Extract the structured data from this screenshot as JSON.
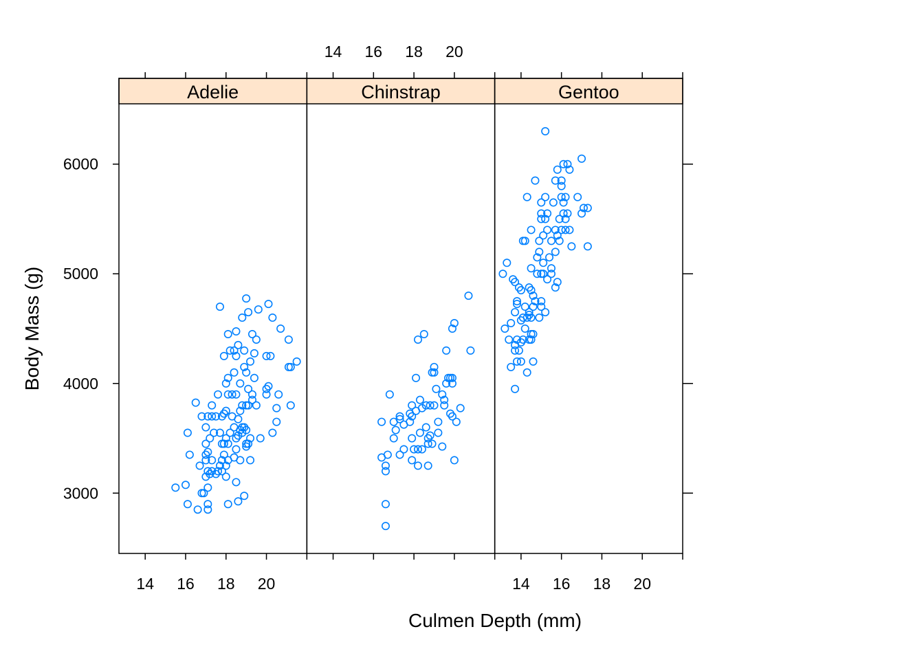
{
  "chart_data": {
    "type": "scatter",
    "xlabel": "Culmen Depth (mm)",
    "ylabel": "Body Mass (g)",
    "xlim": [
      12.7,
      22.0
    ],
    "ylim": [
      2450,
      6550
    ],
    "x_ticks": [
      14,
      16,
      18,
      20
    ],
    "y_ticks": [
      3000,
      4000,
      5000,
      6000
    ],
    "point_color": "#0080ff",
    "strip_color": "#ffe5cc",
    "panels": [
      {
        "name": "Adelie",
        "points": [
          [
            15.5,
            3050
          ],
          [
            16.0,
            3075
          ],
          [
            16.1,
            2900
          ],
          [
            16.1,
            3550
          ],
          [
            16.2,
            3350
          ],
          [
            16.5,
            3825
          ],
          [
            16.6,
            2850
          ],
          [
            16.7,
            3250
          ],
          [
            16.8,
            3000
          ],
          [
            16.8,
            3700
          ],
          [
            16.9,
            3000
          ],
          [
            17.0,
            3150
          ],
          [
            17.0,
            3300
          ],
          [
            17.0,
            3350
          ],
          [
            17.0,
            3450
          ],
          [
            17.0,
            3600
          ],
          [
            17.1,
            2850
          ],
          [
            17.1,
            2900
          ],
          [
            17.1,
            3050
          ],
          [
            17.1,
            3200
          ],
          [
            17.1,
            3375
          ],
          [
            17.1,
            3700
          ],
          [
            17.2,
            3175
          ],
          [
            17.2,
            3500
          ],
          [
            17.3,
            3200
          ],
          [
            17.3,
            3300
          ],
          [
            17.3,
            3700
          ],
          [
            17.3,
            3800
          ],
          [
            17.4,
            3550
          ],
          [
            17.5,
            3175
          ],
          [
            17.5,
            3700
          ],
          [
            17.6,
            3200
          ],
          [
            17.6,
            3900
          ],
          [
            17.7,
            3250
          ],
          [
            17.7,
            3550
          ],
          [
            17.7,
            4700
          ],
          [
            17.8,
            3300
          ],
          [
            17.8,
            3450
          ],
          [
            17.8,
            3700
          ],
          [
            17.8,
            3200
          ],
          [
            17.9,
            3350
          ],
          [
            17.9,
            3450
          ],
          [
            17.9,
            3725
          ],
          [
            17.9,
            4250
          ],
          [
            18.0,
            3150
          ],
          [
            18.0,
            3250
          ],
          [
            18.0,
            3500
          ],
          [
            18.0,
            3750
          ],
          [
            18.0,
            4000
          ],
          [
            18.1,
            2900
          ],
          [
            18.1,
            3300
          ],
          [
            18.1,
            3450
          ],
          [
            18.1,
            3900
          ],
          [
            18.1,
            4050
          ],
          [
            18.1,
            4450
          ],
          [
            18.2,
            3550
          ],
          [
            18.2,
            4300
          ],
          [
            18.3,
            3700
          ],
          [
            18.3,
            3900
          ],
          [
            18.4,
            3325
          ],
          [
            18.4,
            3600
          ],
          [
            18.4,
            4100
          ],
          [
            18.4,
            4300
          ],
          [
            18.5,
            3100
          ],
          [
            18.5,
            3400
          ],
          [
            18.5,
            3500
          ],
          [
            18.5,
            3900
          ],
          [
            18.5,
            4250
          ],
          [
            18.5,
            4475
          ],
          [
            18.6,
            2925
          ],
          [
            18.6,
            3525
          ],
          [
            18.6,
            3675
          ],
          [
            18.6,
            4350
          ],
          [
            18.7,
            3300
          ],
          [
            18.7,
            3575
          ],
          [
            18.7,
            3750
          ],
          [
            18.7,
            4000
          ],
          [
            18.8,
            3550
          ],
          [
            18.8,
            3600
          ],
          [
            18.8,
            3800
          ],
          [
            18.8,
            4600
          ],
          [
            18.9,
            2975
          ],
          [
            18.9,
            3600
          ],
          [
            18.9,
            4150
          ],
          [
            18.9,
            4300
          ],
          [
            19.0,
            3425
          ],
          [
            19.0,
            3450
          ],
          [
            19.0,
            3575
          ],
          [
            19.0,
            3800
          ],
          [
            19.0,
            4100
          ],
          [
            19.0,
            4775
          ],
          [
            19.1,
            3450
          ],
          [
            19.1,
            3800
          ],
          [
            19.1,
            3950
          ],
          [
            19.1,
            4650
          ],
          [
            19.2,
            3300
          ],
          [
            19.2,
            3500
          ],
          [
            19.2,
            4200
          ],
          [
            19.3,
            3850
          ],
          [
            19.3,
            3900
          ],
          [
            19.3,
            4450
          ],
          [
            19.4,
            4050
          ],
          [
            19.4,
            4275
          ],
          [
            19.5,
            3800
          ],
          [
            19.5,
            4400
          ],
          [
            19.6,
            4675
          ],
          [
            19.7,
            3500
          ],
          [
            20.0,
            3900
          ],
          [
            20.0,
            4250
          ],
          [
            20.0,
            3950
          ],
          [
            20.1,
            4725
          ],
          [
            20.1,
            3975
          ],
          [
            20.2,
            4250
          ],
          [
            20.3,
            3550
          ],
          [
            20.3,
            4600
          ],
          [
            20.5,
            3650
          ],
          [
            20.5,
            3775
          ],
          [
            20.6,
            3900
          ],
          [
            20.7,
            4500
          ],
          [
            21.1,
            4150
          ],
          [
            21.1,
            4400
          ],
          [
            21.2,
            4150
          ],
          [
            21.2,
            3800
          ],
          [
            21.5,
            4200
          ]
        ]
      },
      {
        "name": "Chinstrap",
        "points": [
          [
            16.4,
            3650
          ],
          [
            16.4,
            3325
          ],
          [
            16.6,
            3200
          ],
          [
            16.6,
            3250
          ],
          [
            16.6,
            2900
          ],
          [
            16.6,
            2700
          ],
          [
            16.7,
            3350
          ],
          [
            16.8,
            3900
          ],
          [
            17.0,
            3650
          ],
          [
            17.0,
            3500
          ],
          [
            17.1,
            3575
          ],
          [
            17.3,
            3700
          ],
          [
            17.3,
            3675
          ],
          [
            17.3,
            3350
          ],
          [
            17.5,
            3625
          ],
          [
            17.5,
            3400
          ],
          [
            17.8,
            3725
          ],
          [
            17.8,
            3650
          ],
          [
            17.9,
            3500
          ],
          [
            17.9,
            3800
          ],
          [
            17.9,
            3700
          ],
          [
            17.9,
            3300
          ],
          [
            18.0,
            3400
          ],
          [
            18.1,
            4050
          ],
          [
            18.1,
            3750
          ],
          [
            18.2,
            3400
          ],
          [
            18.2,
            4400
          ],
          [
            18.2,
            3250
          ],
          [
            18.3,
            3850
          ],
          [
            18.3,
            3550
          ],
          [
            18.4,
            3775
          ],
          [
            18.4,
            3400
          ],
          [
            18.5,
            4450
          ],
          [
            18.6,
            3600
          ],
          [
            18.6,
            3800
          ],
          [
            18.7,
            3500
          ],
          [
            18.7,
            3250
          ],
          [
            18.7,
            3450
          ],
          [
            18.8,
            3525
          ],
          [
            18.8,
            3800
          ],
          [
            18.9,
            3450
          ],
          [
            18.9,
            4100
          ],
          [
            19.0,
            3800
          ],
          [
            19.0,
            4150
          ],
          [
            19.0,
            4100
          ],
          [
            19.1,
            3950
          ],
          [
            19.2,
            3650
          ],
          [
            19.2,
            3550
          ],
          [
            19.4,
            3425
          ],
          [
            19.4,
            3900
          ],
          [
            19.5,
            3800
          ],
          [
            19.5,
            3850
          ],
          [
            19.6,
            4000
          ],
          [
            19.6,
            4300
          ],
          [
            19.7,
            4050
          ],
          [
            19.8,
            4050
          ],
          [
            19.8,
            3725
          ],
          [
            19.9,
            4000
          ],
          [
            19.9,
            3700
          ],
          [
            19.9,
            4050
          ],
          [
            19.9,
            4500
          ],
          [
            20.0,
            4550
          ],
          [
            20.0,
            3300
          ],
          [
            20.1,
            3650
          ],
          [
            20.3,
            3775
          ],
          [
            20.7,
            4800
          ],
          [
            20.8,
            4300
          ]
        ]
      },
      {
        "name": "Gentoo",
        "points": [
          [
            13.1,
            5000
          ],
          [
            13.2,
            4500
          ],
          [
            13.3,
            5100
          ],
          [
            13.4,
            4400
          ],
          [
            13.5,
            4550
          ],
          [
            13.5,
            4150
          ],
          [
            13.6,
            4950
          ],
          [
            13.7,
            4350
          ],
          [
            13.7,
            4300
          ],
          [
            13.7,
            3950
          ],
          [
            13.7,
            4650
          ],
          [
            13.7,
            4925
          ],
          [
            13.8,
            4750
          ],
          [
            13.8,
            4725
          ],
          [
            13.8,
            4400
          ],
          [
            13.8,
            4200
          ],
          [
            13.9,
            4300
          ],
          [
            13.9,
            4875
          ],
          [
            14.0,
            4575
          ],
          [
            14.0,
            4850
          ],
          [
            14.0,
            4375
          ],
          [
            14.0,
            4200
          ],
          [
            14.1,
            4600
          ],
          [
            14.1,
            5300
          ],
          [
            14.1,
            4400
          ],
          [
            14.2,
            4700
          ],
          [
            14.2,
            5300
          ],
          [
            14.2,
            4500
          ],
          [
            14.3,
            4100
          ],
          [
            14.3,
            5700
          ],
          [
            14.3,
            4600
          ],
          [
            14.4,
            4625
          ],
          [
            14.4,
            4650
          ],
          [
            14.4,
            4875
          ],
          [
            14.4,
            4400
          ],
          [
            14.5,
            4400
          ],
          [
            14.5,
            5050
          ],
          [
            14.5,
            4450
          ],
          [
            14.5,
            4600
          ],
          [
            14.5,
            4850
          ],
          [
            14.5,
            5400
          ],
          [
            14.6,
            4800
          ],
          [
            14.6,
            4200
          ],
          [
            14.6,
            4700
          ],
          [
            14.6,
            4450
          ],
          [
            14.7,
            4750
          ],
          [
            14.7,
            5850
          ],
          [
            14.8,
            5150
          ],
          [
            14.8,
            5000
          ],
          [
            14.9,
            5200
          ],
          [
            14.9,
            5300
          ],
          [
            14.9,
            4600
          ],
          [
            15.0,
            4700
          ],
          [
            15.0,
            5000
          ],
          [
            15.0,
            5550
          ],
          [
            15.0,
            4750
          ],
          [
            15.0,
            5650
          ],
          [
            15.0,
            5500
          ],
          [
            15.1,
            5100
          ],
          [
            15.1,
            5350
          ],
          [
            15.1,
            5000
          ],
          [
            15.2,
            6300
          ],
          [
            15.2,
            4650
          ],
          [
            15.2,
            5700
          ],
          [
            15.2,
            5500
          ],
          [
            15.3,
            5550
          ],
          [
            15.3,
            4950
          ],
          [
            15.3,
            5400
          ],
          [
            15.4,
            5150
          ],
          [
            15.5,
            5050
          ],
          [
            15.5,
            5300
          ],
          [
            15.5,
            5000
          ],
          [
            15.6,
            5650
          ],
          [
            15.7,
            5200
          ],
          [
            15.7,
            5850
          ],
          [
            15.7,
            5400
          ],
          [
            15.7,
            4875
          ],
          [
            15.8,
            5950
          ],
          [
            15.8,
            5350
          ],
          [
            15.8,
            4925
          ],
          [
            15.9,
            5300
          ],
          [
            15.9,
            5500
          ],
          [
            16.0,
            5850
          ],
          [
            16.0,
            5400
          ],
          [
            16.0,
            5800
          ],
          [
            16.0,
            5700
          ],
          [
            16.1,
            5550
          ],
          [
            16.1,
            6000
          ],
          [
            16.1,
            5650
          ],
          [
            16.2,
            5500
          ],
          [
            16.2,
            5700
          ],
          [
            16.2,
            5400
          ],
          [
            16.3,
            6000
          ],
          [
            16.3,
            5550
          ],
          [
            16.4,
            5950
          ],
          [
            16.4,
            5400
          ],
          [
            16.5,
            5250
          ],
          [
            16.8,
            5700
          ],
          [
            17.0,
            6050
          ],
          [
            17.0,
            5550
          ],
          [
            17.1,
            5600
          ],
          [
            17.3,
            5600
          ],
          [
            17.3,
            5250
          ]
        ]
      }
    ]
  }
}
